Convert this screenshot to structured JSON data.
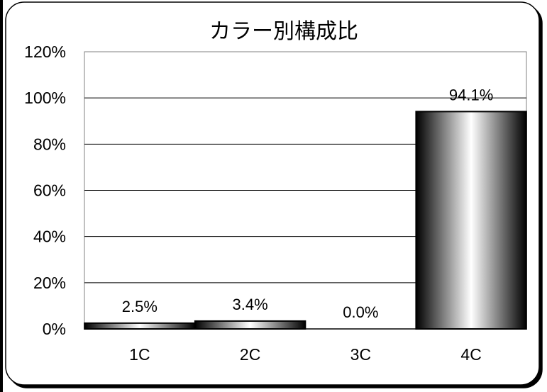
{
  "chart_data": {
    "type": "bar",
    "title": "カラー別構成比",
    "xlabel": "",
    "ylabel": "",
    "categories": [
      "1C",
      "2C",
      "3C",
      "4C"
    ],
    "values": [
      2.5,
      3.4,
      0.0,
      94.1
    ],
    "data_labels": [
      "2.5%",
      "3.4%",
      "0.0%",
      "94.1%"
    ],
    "ylim": [
      0,
      120
    ],
    "yticks": [
      0,
      20,
      40,
      60,
      80,
      100,
      120
    ],
    "ytick_labels": [
      "0%",
      "20%",
      "40%",
      "60%",
      "80%",
      "100%",
      "120%"
    ],
    "grid": true,
    "legend": "none",
    "colors": {
      "frame_border": "#000000",
      "plot_border": "#808080",
      "gridline": "#000000",
      "bar_dark": "#000000",
      "bar_light": "#ffffff"
    }
  }
}
